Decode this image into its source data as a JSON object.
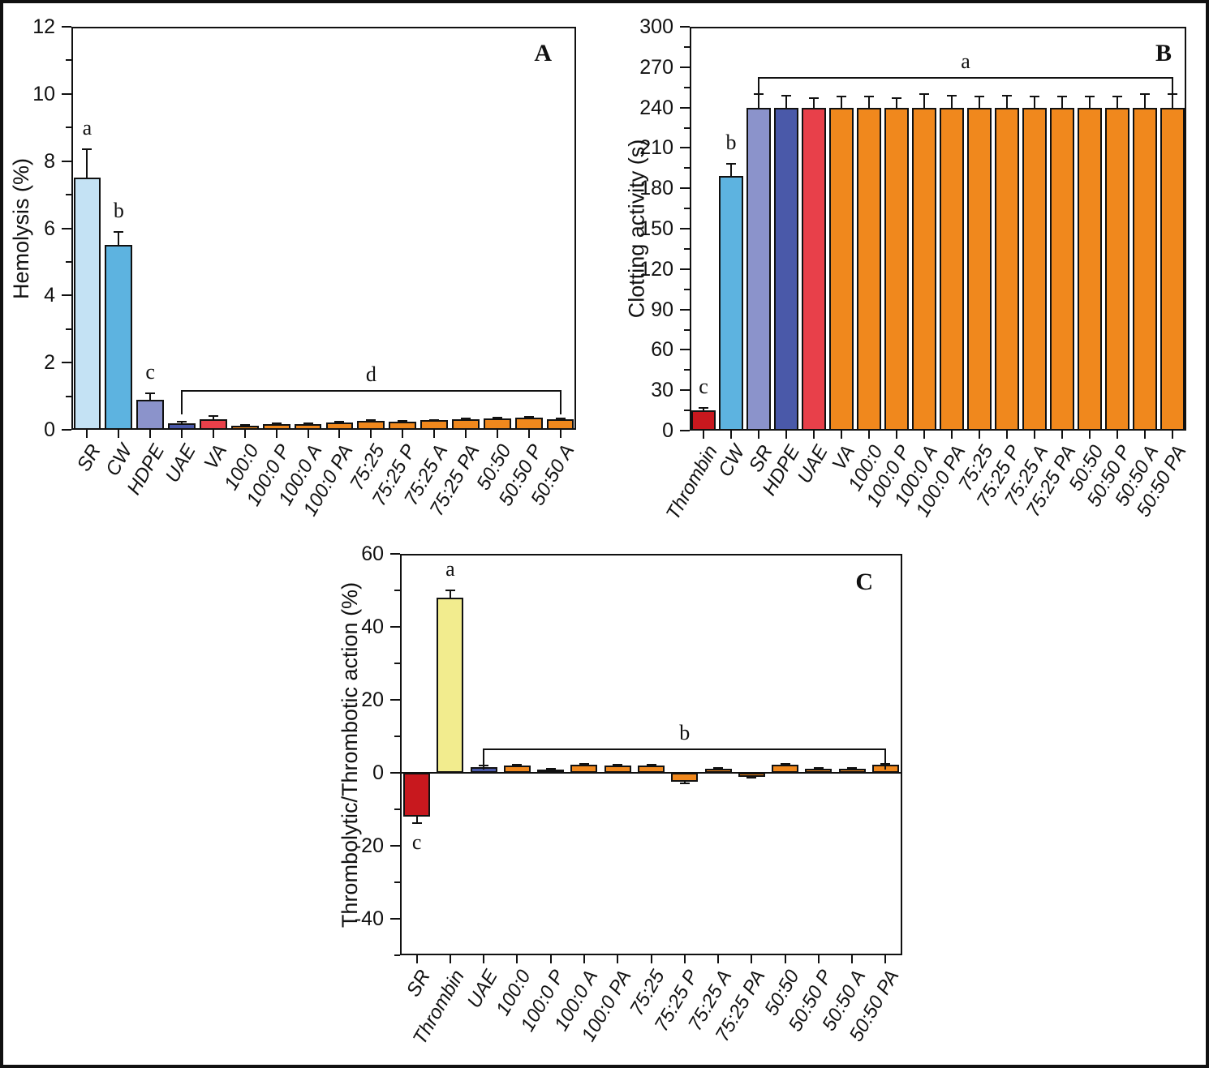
{
  "figure": {
    "background": "#ffffff",
    "border_color": "#111111"
  },
  "colors": {
    "light_blue": "#c4e2f4",
    "medium_blue": "#5db3e0",
    "slate_purple": "#8b93cb",
    "navy_blue": "#4a59a9",
    "red": "#e8404a",
    "dark_red": "#c8181e",
    "orange": "#f0881d",
    "pale_yellow": "#f2ec8e",
    "axis": "#111111"
  },
  "chart_data": [
    {
      "type": "bar",
      "panel_label": "A",
      "ylabel": "Hemolysis (%)",
      "ylim": [
        0,
        12
      ],
      "ytick_major": 2,
      "ytick_minor": 1,
      "grid": false,
      "categories": [
        "SR",
        "CW",
        "HDPE",
        "UAE",
        "VA",
        "100:0",
        "100:0 P",
        "100:0 A",
        "100:0 PA",
        "75:25",
        "75:25 P",
        "75:25 A",
        "75:25 PA",
        "50:50",
        "50:50 P",
        "50:50 A"
      ],
      "values": [
        7.5,
        5.5,
        0.9,
        0.2,
        0.32,
        0.12,
        0.17,
        0.17,
        0.21,
        0.26,
        0.24,
        0.28,
        0.31,
        0.34,
        0.36,
        0.31
      ],
      "errors": [
        0.85,
        0.4,
        0.18,
        0.04,
        0.08,
        0.02,
        0.02,
        0.02,
        0.02,
        0.02,
        0.02,
        0.02,
        0.02,
        0.02,
        0.02,
        0.03
      ],
      "bar_colors": [
        "light_blue",
        "medium_blue",
        "slate_purple",
        "navy_blue",
        "red",
        "orange",
        "orange",
        "orange",
        "orange",
        "orange",
        "orange",
        "orange",
        "orange",
        "orange",
        "orange",
        "orange"
      ],
      "annotations": [
        {
          "category": "SR",
          "text": "a",
          "placement": "above"
        },
        {
          "category": "CW",
          "text": "b",
          "placement": "above"
        },
        {
          "category": "HDPE",
          "text": "c",
          "placement": "above"
        }
      ],
      "bracket": {
        "from_category": "UAE",
        "to_category": "50:50 A",
        "y": 1.15,
        "label": "d"
      }
    },
    {
      "type": "bar",
      "panel_label": "B",
      "ylabel": "Clotting activity (s)",
      "ylim": [
        0,
        300
      ],
      "ytick_major": 30,
      "ytick_minor": 15,
      "grid": false,
      "categories": [
        "Thrombin",
        "CW",
        "SR",
        "HDPE",
        "UAE",
        "VA",
        "100:0",
        "100:0 P",
        "100:0 A",
        "100:0 PA",
        "75:25",
        "75:25 P",
        "75:25 A",
        "75:25 PA",
        "50:50",
        "50:50 P",
        "50:50 A",
        "50:50 PA"
      ],
      "values": [
        15,
        189,
        240,
        240,
        240,
        240,
        240,
        240,
        240,
        240,
        240,
        240,
        240,
        240,
        240,
        240,
        240,
        240
      ],
      "errors": [
        2,
        9,
        10,
        9,
        7,
        8,
        8,
        7,
        10,
        9,
        8,
        9,
        8,
        8,
        8,
        8,
        10,
        10
      ],
      "bar_colors": [
        "dark_red",
        "medium_blue",
        "slate_purple",
        "navy_blue",
        "red",
        "orange",
        "orange",
        "orange",
        "orange",
        "orange",
        "orange",
        "orange",
        "orange",
        "orange",
        "orange",
        "orange",
        "orange",
        "orange"
      ],
      "annotations": [
        {
          "category": "Thrombin",
          "text": "c",
          "placement": "above"
        },
        {
          "category": "CW",
          "text": "b",
          "placement": "above"
        }
      ],
      "bracket": {
        "from_category": "SR",
        "to_category": "50:50 PA",
        "y": 262,
        "label": "a"
      }
    },
    {
      "type": "bar",
      "panel_label": "C",
      "ylabel": "Thrombolytic/Thrombotic action (%)",
      "ylim": [
        -50,
        60
      ],
      "ytick_major": 20,
      "ytick_minor": 10,
      "grid": false,
      "categories": [
        "SR",
        "Thrombin",
        "UAE",
        "100:0",
        "100:0 P",
        "100:0 A",
        "100:0 PA",
        "75:25",
        "75:25 P",
        "75:25 A",
        "75:25 PA",
        "50:50",
        "50:50 P",
        "50:50 A",
        "50:50 PA"
      ],
      "values": [
        -12,
        48,
        1.5,
        2,
        1,
        2.2,
        2,
        2,
        -2.5,
        1.2,
        -1,
        2.2,
        1.2,
        1.2,
        2.2
      ],
      "errors": [
        1.8,
        2,
        0.4,
        0.3,
        0.2,
        0.3,
        0.3,
        0.3,
        0.3,
        0.2,
        0.3,
        0.3,
        0.2,
        0.2,
        0.3
      ],
      "bar_colors": [
        "dark_red",
        "pale_yellow",
        "navy_blue",
        "orange",
        "orange",
        "orange",
        "orange",
        "orange",
        "orange",
        "orange",
        "orange",
        "orange",
        "orange",
        "orange",
        "orange"
      ],
      "annotations": [
        {
          "category": "SR",
          "text": "c",
          "placement": "below"
        },
        {
          "category": "Thrombin",
          "text": "a",
          "placement": "above"
        }
      ],
      "bracket": {
        "from_category": "UAE",
        "to_category": "50:50 PA",
        "y": 6.5,
        "label": "b"
      }
    }
  ]
}
